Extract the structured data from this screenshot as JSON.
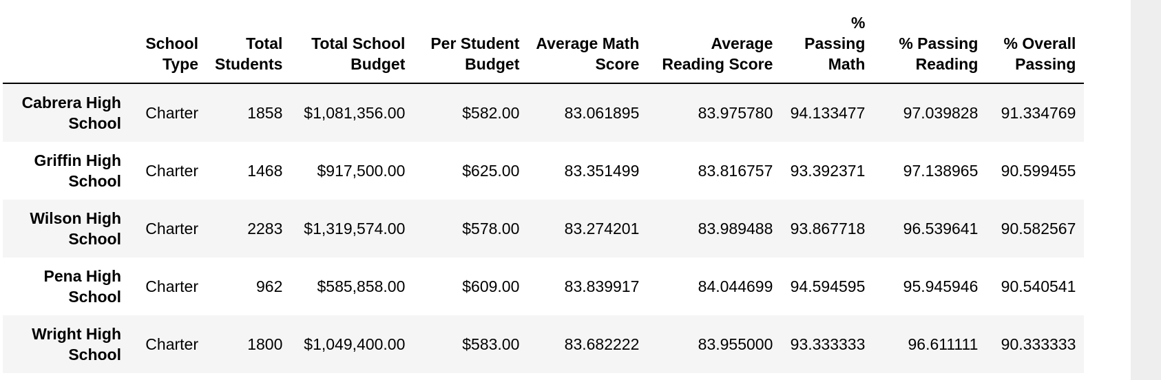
{
  "table": {
    "columns": [
      "",
      "School Type",
      "Total Students",
      "Total School Budget",
      "Per Student Budget",
      "Average Math Score",
      "Average Reading Score",
      "% Passing Math",
      "% Passing Reading",
      "% Overall Passing"
    ],
    "rows": [
      {
        "name": "Cabrera High School",
        "type": "Charter",
        "students": "1858",
        "budget": "$1,081,356.00",
        "per_student": "$582.00",
        "math": "83.061895",
        "reading": "83.975780",
        "pass_math": "94.133477",
        "pass_reading": "97.039828",
        "overall": "91.334769"
      },
      {
        "name": "Griffin High School",
        "type": "Charter",
        "students": "1468",
        "budget": "$917,500.00",
        "per_student": "$625.00",
        "math": "83.351499",
        "reading": "83.816757",
        "pass_math": "93.392371",
        "pass_reading": "97.138965",
        "overall": "90.599455"
      },
      {
        "name": "Wilson High School",
        "type": "Charter",
        "students": "2283",
        "budget": "$1,319,574.00",
        "per_student": "$578.00",
        "math": "83.274201",
        "reading": "83.989488",
        "pass_math": "93.867718",
        "pass_reading": "96.539641",
        "overall": "90.582567"
      },
      {
        "name": "Pena High School",
        "type": "Charter",
        "students": "962",
        "budget": "$585,858.00",
        "per_student": "$609.00",
        "math": "83.839917",
        "reading": "84.044699",
        "pass_math": "94.594595",
        "pass_reading": "95.945946",
        "overall": "90.540541"
      },
      {
        "name": "Wright High School",
        "type": "Charter",
        "students": "1800",
        "budget": "$1,049,400.00",
        "per_student": "$583.00",
        "math": "83.682222",
        "reading": "83.955000",
        "pass_math": "93.333333",
        "pass_reading": "96.611111",
        "overall": "90.333333"
      }
    ]
  },
  "colors": {
    "odd_row": "#f5f5f5",
    "even_row": "#ffffff",
    "header_rule": "#000000",
    "scroll_strip": "#eeeeee"
  }
}
